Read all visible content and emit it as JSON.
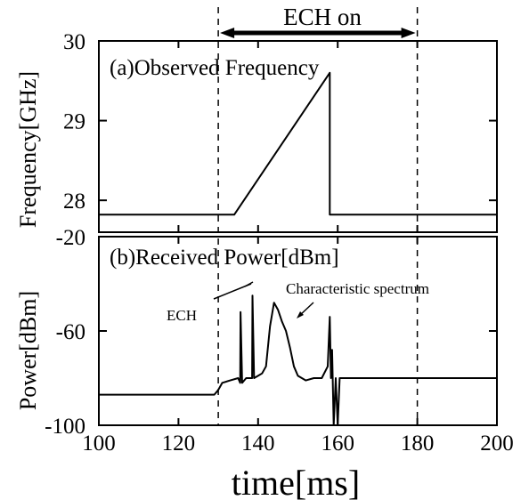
{
  "ech_label": "ECH on",
  "ech_interval": [
    130,
    180
  ],
  "xlabel": "time[ms]",
  "chart_data": [
    {
      "type": "line",
      "title": "(a)Observed Frequency",
      "xlabel": "time[ms]",
      "ylabel": "Frequency[GHz]",
      "xlim": [
        100,
        200
      ],
      "ylim": [
        27.6,
        30
      ],
      "xticks": [
        "100",
        "120",
        "140",
        "160",
        "180",
        "200"
      ],
      "yticks": [
        "28",
        "29",
        "30"
      ],
      "series": [
        {
          "x": [
            100,
            134,
            158,
            158,
            200
          ],
          "y": [
            27.82,
            27.82,
            29.6,
            27.82,
            27.82
          ]
        }
      ]
    },
    {
      "type": "line",
      "title": "(b)Received Power[dBm]",
      "xlabel": "time[ms]",
      "ylabel": "Power[dBm]",
      "xlim": [
        100,
        200
      ],
      "ylim": [
        -100,
        -20
      ],
      "xticks": [
        "100",
        "120",
        "140",
        "160",
        "180",
        "200"
      ],
      "yticks": [
        "-20",
        "-60",
        "-100"
      ],
      "annotations": [
        "ECH",
        "Characteristic spectrum"
      ],
      "series": [
        {
          "x": [
            100,
            110,
            120,
            129,
            130,
            131,
            133,
            135,
            135.5,
            135.6,
            136,
            137,
            138,
            138.5,
            138.6,
            139,
            140,
            141,
            142,
            143,
            144,
            145,
            146,
            147,
            148,
            149,
            150,
            152,
            154,
            156,
            157.5,
            158,
            158.3,
            158.6,
            159,
            159.5,
            160,
            160.5,
            161,
            165,
            170,
            175,
            180,
            185,
            190,
            195,
            200
          ],
          "y": [
            -87,
            -87,
            -87,
            -87,
            -85,
            -82,
            -81,
            -80,
            -82,
            -52,
            -82,
            -80,
            -80,
            -80,
            -45,
            -80,
            -79,
            -78,
            -75,
            -58,
            -48,
            -51,
            -56,
            -60,
            -67,
            -75,
            -79,
            -81,
            -80,
            -80,
            -75,
            -54,
            -80,
            -68,
            -100,
            -80,
            -100,
            -80,
            -80,
            -80,
            -80,
            -80,
            -80,
            -80,
            -80,
            -80,
            -80
          ]
        }
      ]
    }
  ]
}
